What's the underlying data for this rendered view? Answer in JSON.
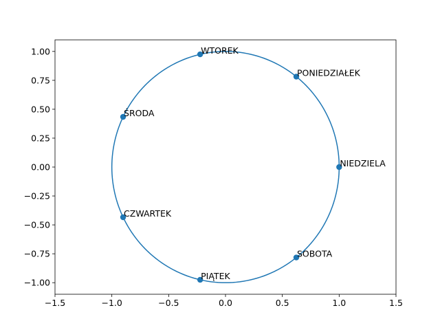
{
  "chart_data": {
    "type": "scatter",
    "title": "",
    "xlabel": "",
    "ylabel": "",
    "xlim": [
      -1.5,
      1.5
    ],
    "ylim": [
      -1.1,
      1.1
    ],
    "x_ticks": [
      -1.5,
      -1.0,
      -0.5,
      0.0,
      0.5,
      1.0,
      1.5
    ],
    "x_tick_labels": [
      "−1.5",
      "−1.0",
      "−0.5",
      "0.0",
      "0.5",
      "1.0",
      "1.5"
    ],
    "y_ticks": [
      -1.0,
      -0.75,
      -0.5,
      -0.25,
      0.0,
      0.25,
      0.5,
      0.75,
      1.0
    ],
    "y_tick_labels": [
      "−1.00",
      "−0.75",
      "−0.50",
      "−0.25",
      "0.00",
      "0.25",
      "0.50",
      "0.75",
      "1.00"
    ],
    "grid": false,
    "color": "#1f77b4",
    "curve": {
      "shape": "circle",
      "center": [
        0,
        0
      ],
      "radius": 1
    },
    "points": [
      {
        "label": "NIEDZIELA",
        "x": 1.0,
        "y": 0.0
      },
      {
        "label": "PONIEDZIAŁEK",
        "x": 0.623,
        "y": 0.782
      },
      {
        "label": "WTOREK",
        "x": -0.223,
        "y": 0.975
      },
      {
        "label": "ŚRODA",
        "x": -0.901,
        "y": 0.434
      },
      {
        "label": "CZWARTEK",
        "x": -0.901,
        "y": -0.434
      },
      {
        "label": "PIĄTEK",
        "x": -0.223,
        "y": -0.975
      },
      {
        "label": "SOBOTA",
        "x": 0.623,
        "y": -0.782
      }
    ]
  }
}
